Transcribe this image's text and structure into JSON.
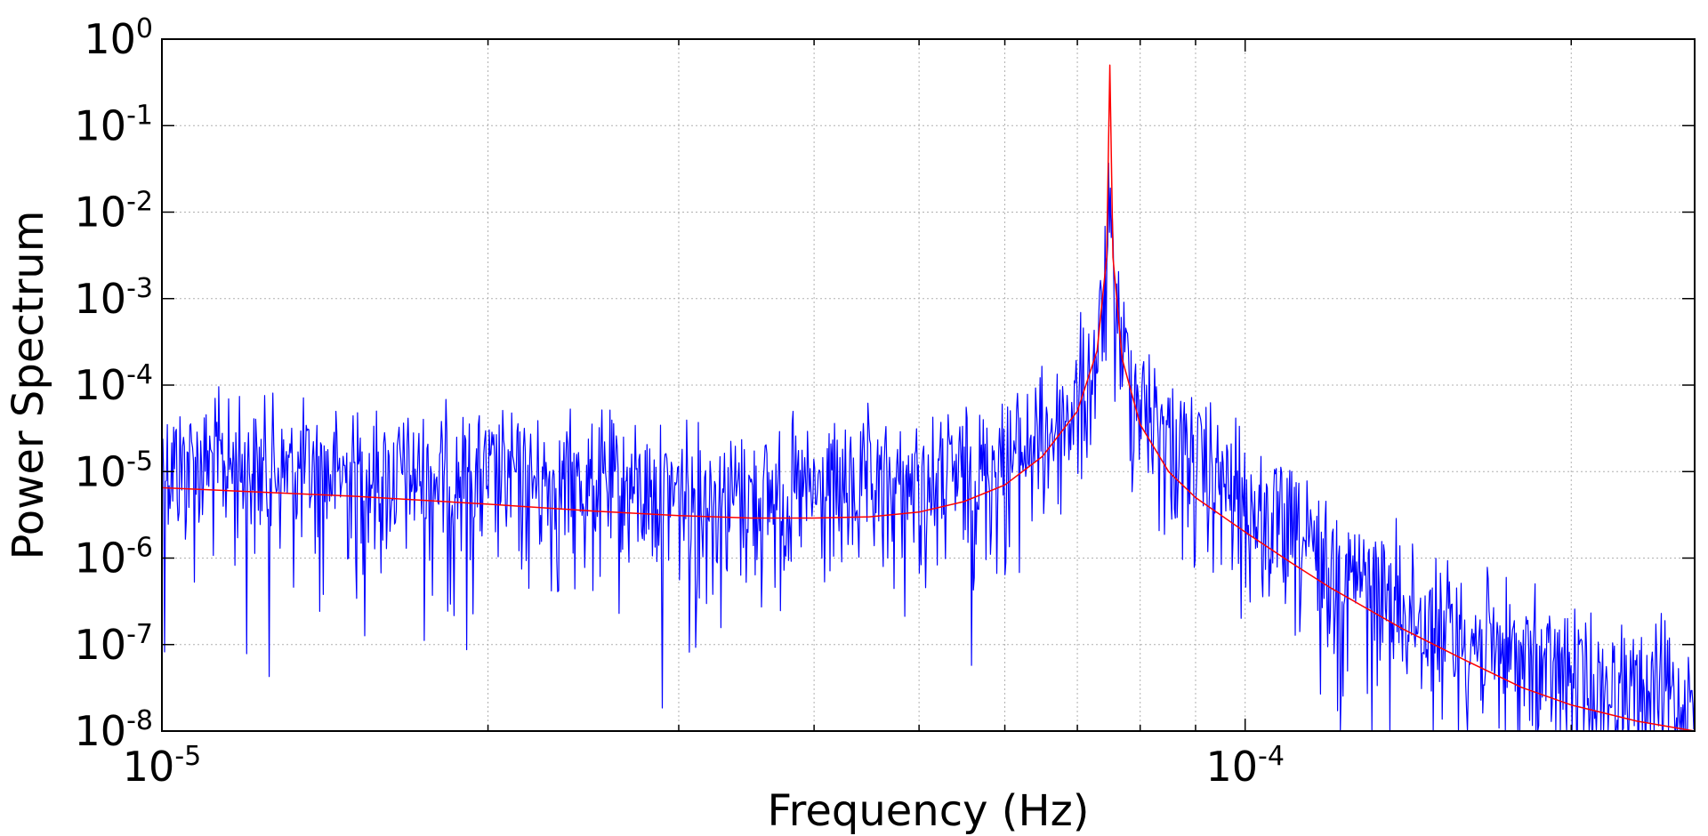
{
  "chart_data": {
    "type": "line",
    "title": "",
    "xlabel": "Frequency (Hz)",
    "ylabel": "Power Spectrum",
    "x_scale": "log",
    "y_scale": "log",
    "xlim": [
      1e-05,
      0.00026
    ],
    "ylim": [
      1e-08,
      1
    ],
    "grid": true,
    "x_ticks": [
      {
        "value": 1e-05,
        "base": "10",
        "exp": "-5"
      },
      {
        "value": 0.0001,
        "base": "10",
        "exp": "-4"
      }
    ],
    "y_ticks": [
      {
        "value": 1,
        "base": "10",
        "exp": "0"
      },
      {
        "value": 0.1,
        "base": "10",
        "exp": "-1"
      },
      {
        "value": 0.01,
        "base": "10",
        "exp": "-2"
      },
      {
        "value": 0.001,
        "base": "10",
        "exp": "-3"
      },
      {
        "value": 0.0001,
        "base": "10",
        "exp": "-4"
      },
      {
        "value": 1e-05,
        "base": "10",
        "exp": "-5"
      },
      {
        "value": 1e-06,
        "base": "10",
        "exp": "-6"
      },
      {
        "value": 1e-07,
        "base": "10",
        "exp": "-7"
      },
      {
        "value": 1e-08,
        "base": "10",
        "exp": "-8"
      }
    ],
    "series": [
      {
        "color": "#0000ff",
        "kind": "noisy periodogram",
        "x": [
          1e-05,
          1.1e-05,
          1.2e-05,
          1.3e-05,
          1.5e-05,
          1.7e-05,
          2e-05,
          2.3e-05,
          2.7e-05,
          3e-05,
          3.5e-05,
          4e-05,
          4.5e-05,
          5e-05,
          5.5e-05,
          6e-05,
          6.5e-05,
          7e-05,
          7.3e-05,
          7.45e-05,
          7.5e-05,
          7.55e-05,
          7.7e-05,
          8e-05,
          8.5e-05,
          9e-05,
          0.0001,
          0.00011,
          0.00012,
          0.00014,
          0.00016,
          0.00018,
          0.0002,
          0.00023,
          0.00026
        ],
        "y": [
          2e-05,
          1.9e-05,
          1.7e-05,
          1.5e-05,
          1.4e-05,
          1.3e-05,
          1.2e-05,
          1.1e-05,
          9.5e-06,
          8.5e-06,
          8e-06,
          8e-06,
          8.5e-06,
          1e-05,
          1.3e-05,
          2e-05,
          3.5e-05,
          9e-05,
          0.0003,
          0.003,
          0.01,
          0.0025,
          0.0004,
          0.0001,
          4e-05,
          1.8e-05,
          6e-06,
          2.5e-06,
          1.2e-06,
          4e-07,
          1.8e-07,
          1e-07,
          6e-08,
          4e-08,
          3e-08
        ]
      },
      {
        "color": "#ff0000",
        "kind": "smooth fit",
        "x": [
          1e-05,
          1.5e-05,
          2e-05,
          2.5e-05,
          3e-05,
          3.5e-05,
          4e-05,
          4.5e-05,
          5e-05,
          5.5e-05,
          6e-05,
          6.5e-05,
          7e-05,
          7.3e-05,
          7.45e-05,
          7.5e-05,
          7.55e-05,
          7.7e-05,
          8e-05,
          8.5e-05,
          9e-05,
          0.0001,
          0.00011,
          0.00012,
          0.00014,
          0.00016,
          0.00018,
          0.0002,
          0.00023,
          0.00026
        ],
        "y": [
          6.5e-06,
          5.2e-06,
          4.2e-06,
          3.5e-06,
          3.1e-06,
          2.9e-06,
          2.9e-06,
          3e-06,
          3.4e-06,
          4.5e-06,
          7e-06,
          1.5e-05,
          5e-05,
          0.00025,
          0.003,
          0.5,
          0.003,
          0.0002,
          3.5e-05,
          1e-05,
          5e-06,
          2e-06,
          9e-07,
          4.5e-07,
          1.5e-07,
          6.5e-08,
          3.2e-08,
          2e-08,
          1.3e-08,
          1e-08
        ]
      }
    ]
  }
}
